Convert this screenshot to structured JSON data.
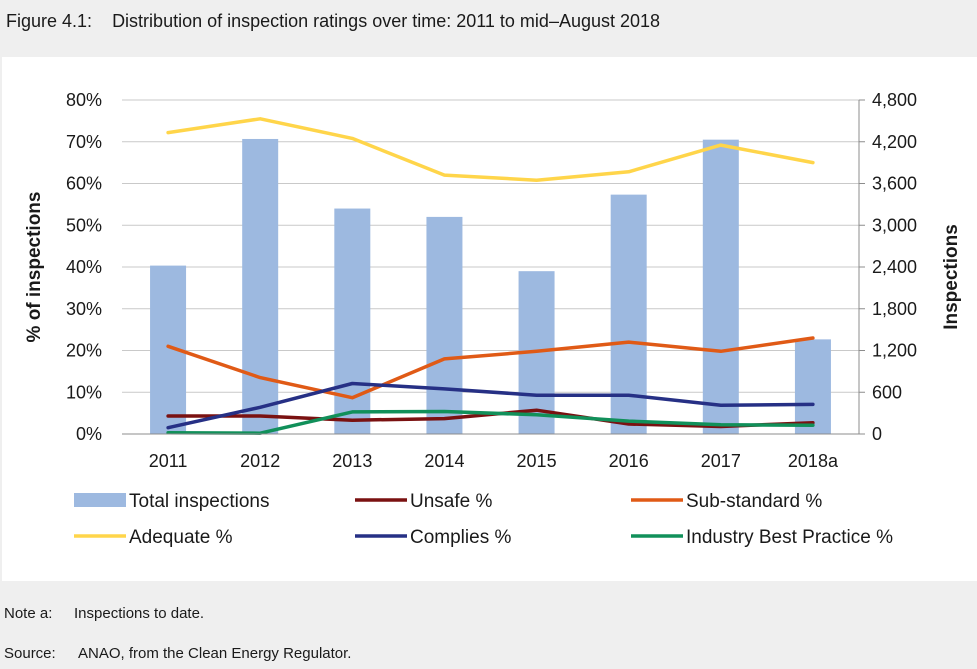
{
  "figure_label": "Figure 4.1:",
  "figure_caption": "Distribution of inspection ratings over time: 2011 to mid–August 2018",
  "notes": [
    {
      "label": "Note a:",
      "text": "Inspections to date."
    },
    {
      "label": "Source:",
      "text": "ANAO, from the Clean Energy Regulator."
    }
  ],
  "chart_data": {
    "type": "bar+line",
    "categories": [
      "2011",
      "2012",
      "2013",
      "2014",
      "2015",
      "2016",
      "2017",
      "2018a"
    ],
    "y_left": {
      "label": "% of inspections",
      "range": [
        0,
        80
      ],
      "ticks": [
        "0%",
        "10%",
        "20%",
        "30%",
        "40%",
        "50%",
        "60%",
        "70%",
        "80%"
      ]
    },
    "y_right": {
      "label": "Inspections",
      "range": [
        0,
        4800
      ],
      "ticks": [
        "0",
        "600",
        "1,200",
        "1,800",
        "2,400",
        "3,000",
        "3,600",
        "4,200",
        "4,800"
      ]
    },
    "gridlines": true,
    "legend_position": "bottom",
    "bars": {
      "name": "Total inspections",
      "axis": "right",
      "color": "#9db9e0",
      "values": [
        2420,
        4240,
        3240,
        3120,
        2340,
        3440,
        4230,
        1360
      ]
    },
    "lines": [
      {
        "name": "Unsafe %",
        "axis": "left",
        "color": "#7a1111",
        "values": [
          4.3,
          4.3,
          3.3,
          3.7,
          5.7,
          2.4,
          1.8,
          2.7
        ]
      },
      {
        "name": "Sub-standard %",
        "axis": "left",
        "color": "#e05a16",
        "values": [
          21,
          13.5,
          8.7,
          18,
          19.8,
          22,
          19.8,
          23
        ]
      },
      {
        "name": "Adequate %",
        "axis": "left",
        "color": "#ffd54a",
        "values": [
          72.2,
          75.5,
          70.8,
          62,
          60.8,
          62.8,
          69.2,
          65
        ]
      },
      {
        "name": "Complies %",
        "axis": "left",
        "color": "#263085",
        "values": [
          1.5,
          6.4,
          12.1,
          10.8,
          9.3,
          9.3,
          6.9,
          7.1
        ]
      },
      {
        "name": "Industry Best Practice %",
        "axis": "left",
        "color": "#11905a",
        "values": [
          0.3,
          0.2,
          5.3,
          5.4,
          4.6,
          3.1,
          2.2,
          2.1
        ]
      }
    ]
  }
}
